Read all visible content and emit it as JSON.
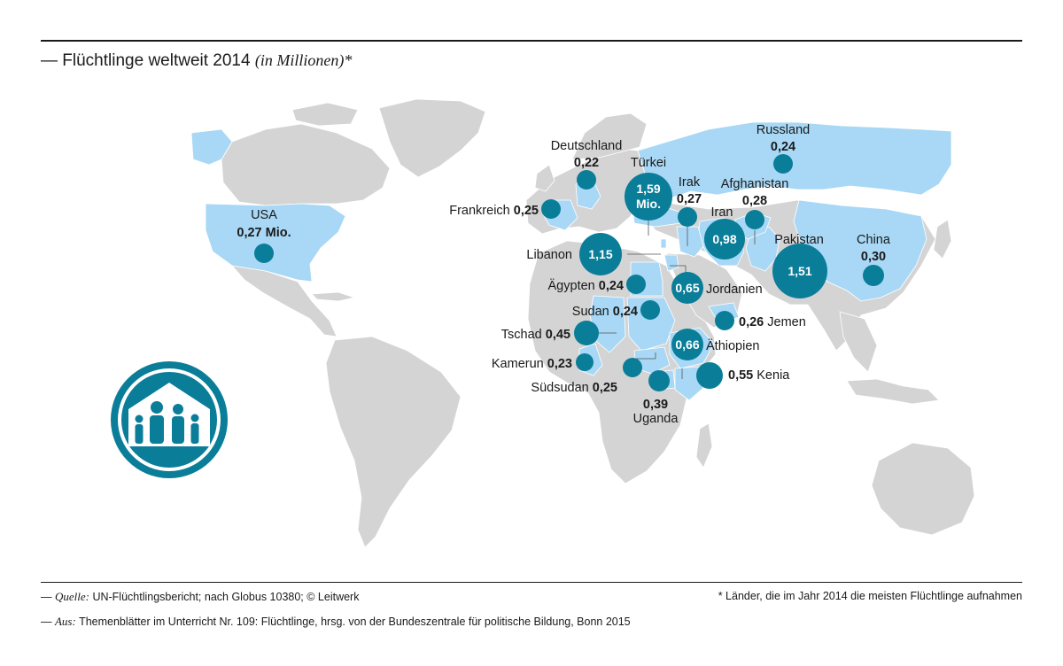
{
  "header": {
    "title": "— Flüchtlinge weltweit 2014",
    "subtitle": "(in Millionen)",
    "asterisk": "*"
  },
  "colors": {
    "highlight_country": "#a8d8f5",
    "land": "#d4d4d4",
    "bubble": "#0a7d99",
    "rule": "#1a1a1a"
  },
  "icon": {
    "name": "refugee-shelter-icon"
  },
  "countries": [
    {
      "id": "usa",
      "name": "USA",
      "value": "0,27 Mio.",
      "refugees_millions": 0.27
    },
    {
      "id": "frankreich",
      "name": "Frankreich",
      "value": "0,25",
      "refugees_millions": 0.25
    },
    {
      "id": "deutschland",
      "name": "Deutschland",
      "value": "0,22",
      "refugees_millions": 0.22
    },
    {
      "id": "tuerkei",
      "name": "Türkei",
      "value": "1,59",
      "value_unit": "Mio.",
      "refugees_millions": 1.59
    },
    {
      "id": "irak",
      "name": "Irak",
      "value": "0,27",
      "refugees_millions": 0.27
    },
    {
      "id": "afghanistan",
      "name": "Afghanistan",
      "value": "0,28",
      "refugees_millions": 0.28
    },
    {
      "id": "russland",
      "name": "Russland",
      "value": "0,24",
      "refugees_millions": 0.24
    },
    {
      "id": "iran",
      "name": "Iran",
      "value": "0,98",
      "refugees_millions": 0.98
    },
    {
      "id": "pakistan",
      "name": "Pakistan",
      "value": "1,51",
      "refugees_millions": 1.51
    },
    {
      "id": "china",
      "name": "China",
      "value": "0,30",
      "refugees_millions": 0.3
    },
    {
      "id": "libanon",
      "name": "Libanon",
      "value": "1,15",
      "refugees_millions": 1.15
    },
    {
      "id": "aegypten",
      "name": "Ägypten",
      "value": "0,24",
      "refugees_millions": 0.24
    },
    {
      "id": "jordanien",
      "name": "Jordanien",
      "value": "0,65",
      "refugees_millions": 0.65
    },
    {
      "id": "sudan",
      "name": "Sudan",
      "value": "0,24",
      "refugees_millions": 0.24
    },
    {
      "id": "jemen",
      "name": "Jemen",
      "value": "0,26",
      "refugees_millions": 0.26
    },
    {
      "id": "tschad",
      "name": "Tschad",
      "value": "0,45",
      "refugees_millions": 0.45
    },
    {
      "id": "aethiopien",
      "name": "Äthiopien",
      "value": "0,66",
      "refugees_millions": 0.66
    },
    {
      "id": "kamerun",
      "name": "Kamerun",
      "value": "0,23",
      "refugees_millions": 0.23
    },
    {
      "id": "kenia",
      "name": "Kenia",
      "value": "0,55",
      "refugees_millions": 0.55
    },
    {
      "id": "suedsudan",
      "name": "Südsudan",
      "value": "0,25",
      "refugees_millions": 0.25
    },
    {
      "id": "uganda",
      "name": "Uganda",
      "value": "0,39",
      "refugees_millions": 0.39
    }
  ],
  "footer": {
    "source_label": "Quelle:",
    "source_text": "UN-Flüchtlingsbericht; nach Globus 10380; © Leitwerk",
    "footnote": "* Länder, die im Jahr 2014 die meisten Flüchtlinge aufnahmen",
    "from_label": "Aus:",
    "from_text": "Themenblätter im Unterricht Nr. 109: Flüchtlinge, hrsg. von der Bundeszentrale für politische Bildung, Bonn 2015"
  }
}
